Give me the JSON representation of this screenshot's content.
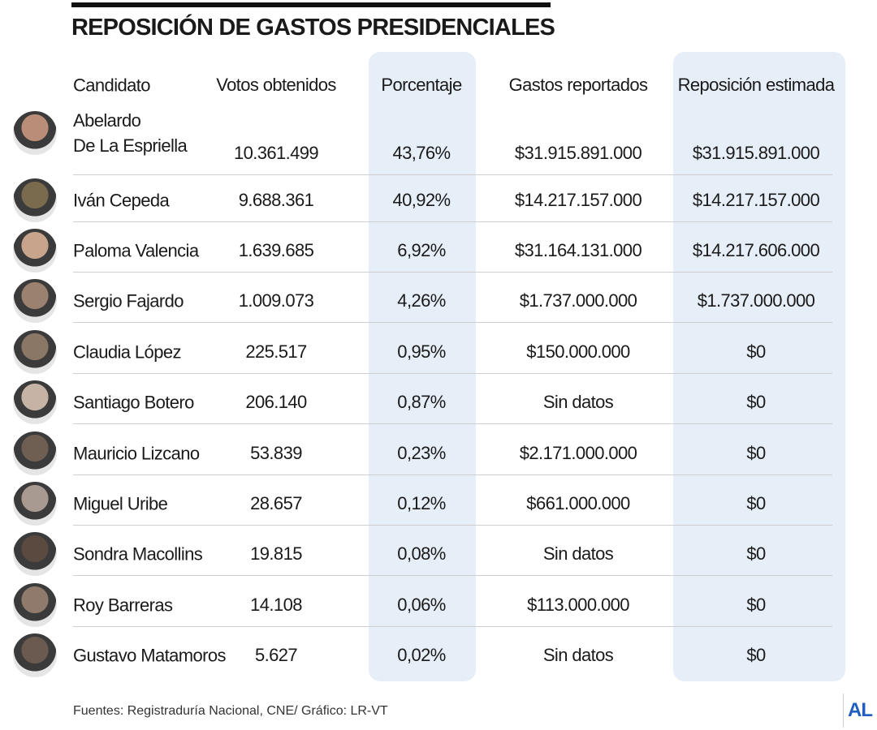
{
  "header": {
    "title": "REPOSICIÓN DE GASTOS PRESIDENCIALES"
  },
  "table": {
    "columns": [
      "Candidato",
      "Votos obtenidos",
      "Porcentaje",
      "Gastos reportados",
      "Reposición estimada"
    ],
    "rows": [
      [
        "Abelardo\nDe La Espriella",
        "10.361.499",
        "43,76%",
        "$31.915.891.000",
        "$31.915.891.000"
      ],
      [
        "Iván Cepeda",
        "9.688.361",
        "40,92%",
        "$14.217.157.000",
        "$14.217.157.000"
      ],
      [
        "Paloma Valencia",
        "1.639.685",
        "6,92%",
        "$31.164.131.000",
        "$14.217.606.000"
      ],
      [
        "Sergio Fajardo",
        "1.009.073",
        "4,26%",
        "$1.737.000.000",
        "$1.737.000.000"
      ],
      [
        "Claudia López",
        "225.517",
        "0,95%",
        "$150.000.000",
        "$0"
      ],
      [
        "Santiago Botero",
        "206.140",
        "0,87%",
        "Sin datos",
        "$0"
      ],
      [
        "Mauricio Lizcano",
        "53.839",
        "0,23%",
        "$2.171.000.000",
        "$0"
      ],
      [
        "Miguel Uribe",
        "28.657",
        "0,12%",
        "$661.000.000",
        "$0"
      ],
      [
        "Sondra Macollins",
        "19.815",
        "0,08%",
        "Sin datos",
        "$0"
      ],
      [
        "Roy Barreras",
        "14.108",
        "0,06%",
        "$113.000.000",
        "$0"
      ],
      [
        "Gustavo Matamoros",
        "5.627",
        "0,02%",
        "Sin datos",
        "$0"
      ]
    ]
  },
  "footer": {
    "source": "Fuentes: Registraduría Nacional, CNE/ Gráfico: LR-VT",
    "logo": "AL"
  }
}
